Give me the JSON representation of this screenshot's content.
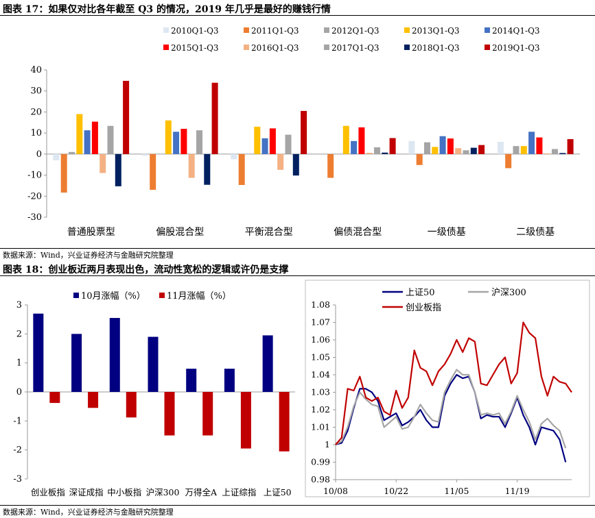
{
  "figure17": {
    "title": "图表 17：如果仅对比各年截至 Q3 的情况，2019 年几乎是最好的赚钱行情",
    "source": "数据来源：Wind，兴业证券经济与金融研究院整理"
  },
  "figure18": {
    "title": "图表 18：创业板近两月表现出色，流动性宽松的逻辑或许仍是支撑",
    "source": "数据来源：Wind，兴业证券经济与金融研究院整理"
  },
  "chart_data": [
    {
      "type": "bar",
      "categories": [
        "普通股票型",
        "偏股混合型",
        "平衡混合型",
        "偏债混合型",
        "一级债基",
        "二级债基"
      ],
      "series": [
        {
          "name": "2010Q1-Q3",
          "color": "#dde7f2",
          "values": [
            -3.0,
            -0.8,
            -2.5,
            0,
            6.2,
            5.8
          ]
        },
        {
          "name": "2011Q1-Q3",
          "color": "#ed7d31",
          "values": [
            -18.3,
            -17.0,
            -14.7,
            -11.3,
            -5.2,
            -6.7
          ]
        },
        {
          "name": "2012Q1-Q3",
          "color": "#a5a5a5",
          "values": [
            1.0,
            0,
            0,
            0,
            5.6,
            3.8
          ]
        },
        {
          "name": "2013Q1-Q3",
          "color": "#ffc000",
          "values": [
            19.0,
            16.0,
            13.0,
            13.4,
            3.4,
            3.8
          ]
        },
        {
          "name": "2014Q1-Q3",
          "color": "#4472c4",
          "values": [
            11.3,
            10.6,
            7.5,
            6.2,
            8.5,
            10.6
          ]
        },
        {
          "name": "2015Q1-Q3",
          "color": "#ff0000",
          "values": [
            15.4,
            12.0,
            12.2,
            12.7,
            7.4,
            7.9
          ]
        },
        {
          "name": "2016Q1-Q3",
          "color": "#f4b183",
          "values": [
            -9.0,
            -11.3,
            -7.5,
            0.6,
            2.8,
            0.3
          ]
        },
        {
          "name": "2017Q1-Q3",
          "color": "#a5a5a5",
          "values": [
            13.4,
            11.3,
            9.2,
            3.2,
            1.8,
            2.4
          ]
        },
        {
          "name": "2018Q1-Q3",
          "color": "#002060",
          "values": [
            -15.3,
            -14.6,
            -10.2,
            0.7,
            3.0,
            0.5
          ]
        },
        {
          "name": "2019Q1-Q3",
          "color": "#c00000",
          "values": [
            34.8,
            33.9,
            20.5,
            7.6,
            4.3,
            7.1
          ]
        }
      ],
      "ylim": [
        -30,
        40
      ],
      "yticks": [
        40,
        30,
        20,
        10,
        0,
        -10,
        -20,
        -30
      ],
      "legend": "top"
    },
    {
      "type": "bar",
      "categories": [
        "创业板指",
        "深证成指",
        "中小板指",
        "沪深300",
        "万得全A",
        "上证综指",
        "上证50"
      ],
      "series": [
        {
          "name": "10月涨幅（%）",
          "color": "#000080",
          "values": [
            2.7,
            2.0,
            2.55,
            1.9,
            0.8,
            0.8,
            1.95
          ]
        },
        {
          "name": "11月涨幅（%）",
          "color": "#c00000",
          "values": [
            -0.38,
            -0.55,
            -0.88,
            -1.5,
            -1.5,
            -1.95,
            -2.05
          ]
        }
      ],
      "ylim": [
        -3,
        3
      ],
      "yticks": [
        3,
        2,
        1,
        0,
        -1,
        -2,
        -3
      ],
      "legend": "top"
    },
    {
      "type": "line",
      "x_tick_labels": [
        "10/08",
        "10/22",
        "11/05",
        "11/19"
      ],
      "x_tick_index": [
        0,
        10,
        20,
        30
      ],
      "ylim": [
        0.98,
        1.08
      ],
      "yticks": [
        "1.08",
        "1.07",
        "1.06",
        "1.05",
        "1.04",
        "1.03",
        "1.02",
        "1.01",
        "1",
        "0.99",
        "0.98"
      ],
      "series": [
        {
          "name": "上证50",
          "color": "#000080",
          "values": [
            1.0,
            1.001,
            1.008,
            1.021,
            1.032,
            1.032,
            1.03,
            1.025,
            1.014,
            1.016,
            1.018,
            1.011,
            1.013,
            1.016,
            1.02,
            1.014,
            1.01,
            1.01,
            1.028,
            1.035,
            1.04,
            1.038,
            1.039,
            1.03,
            1.015,
            1.017,
            1.016,
            1.016,
            1.01,
            1.018,
            1.027,
            1.017,
            1.01,
            1.0,
            1.01,
            1.009,
            1.008,
            1.003,
            0.99
          ]
        },
        {
          "name": "沪深300",
          "color": "#a5a5a5",
          "values": [
            1.0,
            1.002,
            1.01,
            1.022,
            1.03,
            1.026,
            1.023,
            1.022,
            1.01,
            1.013,
            1.016,
            1.009,
            1.01,
            1.016,
            1.023,
            1.018,
            1.014,
            1.013,
            1.03,
            1.037,
            1.043,
            1.04,
            1.04,
            1.03,
            1.017,
            1.018,
            1.017,
            1.018,
            1.012,
            1.019,
            1.028,
            1.02,
            1.013,
            1.003,
            1.012,
            1.015,
            1.011,
            1.008,
            0.998
          ]
        },
        {
          "name": "创业板指",
          "color": "#c00000",
          "values": [
            1.0,
            1.004,
            1.032,
            1.031,
            1.039,
            1.027,
            1.025,
            1.027,
            1.019,
            1.017,
            1.031,
            1.021,
            1.027,
            1.054,
            1.044,
            1.042,
            1.034,
            1.042,
            1.046,
            1.052,
            1.06,
            1.053,
            1.061,
            1.059,
            1.035,
            1.034,
            1.04,
            1.046,
            1.05,
            1.035,
            1.041,
            1.07,
            1.064,
            1.061,
            1.039,
            1.028,
            1.039,
            1.036,
            1.035,
            1.03
          ]
        }
      ],
      "legend": "top"
    }
  ]
}
